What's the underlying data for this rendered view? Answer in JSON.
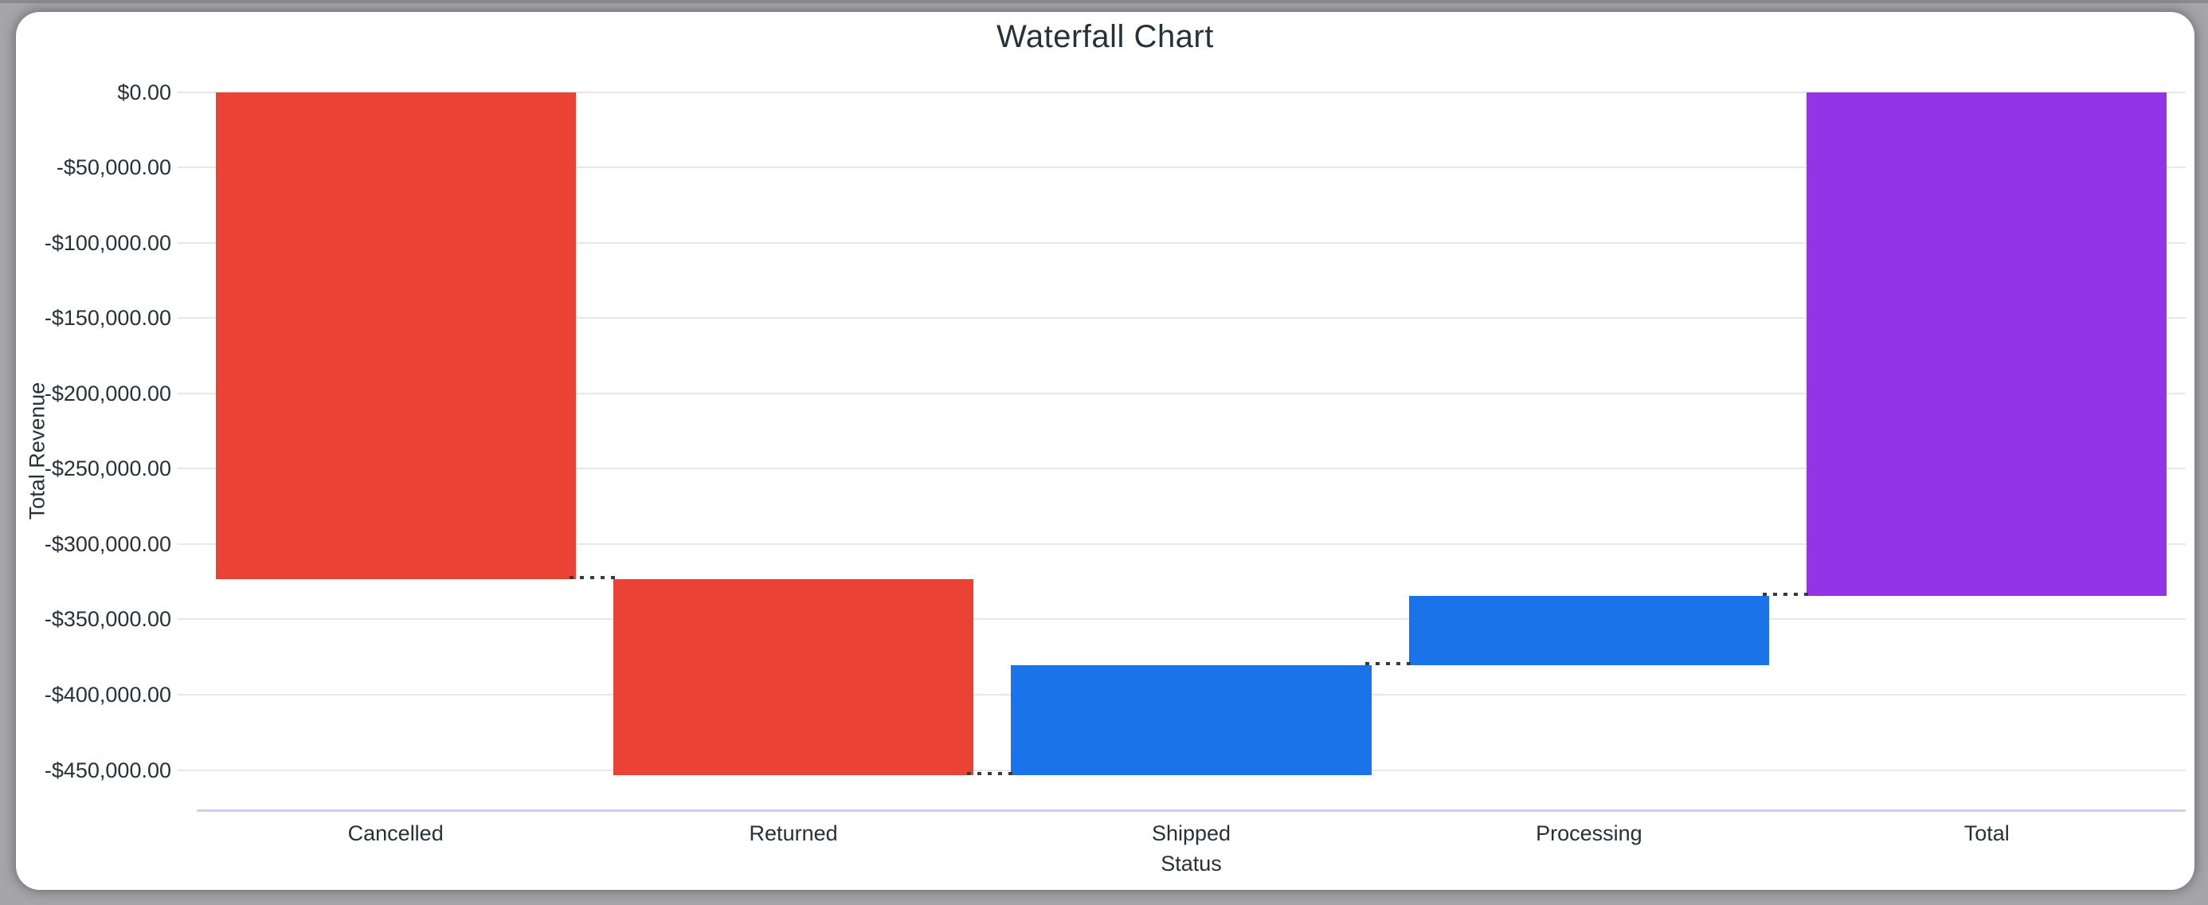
{
  "window": {
    "frame_color": "#a6a6aa",
    "card_color": "#ffffff",
    "text_color": "#263238"
  },
  "chart_data": {
    "type": "bar",
    "subtype": "waterfall",
    "title": "Waterfall Chart",
    "xlabel": "Status",
    "ylabel": "Total Revenue",
    "categories": [
      "Cancelled",
      "Returned",
      "Shipped",
      "Processing",
      "Total"
    ],
    "values": [
      -323500,
      -130000,
      73000,
      46300,
      -334200
    ],
    "bar_roles": [
      "decrease",
      "decrease",
      "increase",
      "increase",
      "total"
    ],
    "cumulative": [
      -323500,
      -453500,
      -380500,
      -334200,
      -334200
    ],
    "series_colors": {
      "decrease": "#ea4335",
      "increase": "#1a73e8",
      "total": "#9334e6"
    },
    "y_ticks": [
      0,
      -50000,
      -100000,
      -150000,
      -200000,
      -250000,
      -300000,
      -350000,
      -400000,
      -450000
    ],
    "y_tick_labels": [
      "$0.00",
      "-$50,000.00",
      "-$100,000.00",
      "-$150,000.00",
      "-$200,000.00",
      "-$250,000.00",
      "-$300,000.00",
      "-$350,000.00",
      "-$400,000.00",
      "-$450,000.00"
    ],
    "ylim": [
      -476000,
      0
    ],
    "grid": true,
    "legend_position": "none",
    "connector_style": "dotted",
    "grid_color": "#e7e7e9",
    "axis_line_color": "#c9d2ec",
    "connector_color": "#3a3a3a"
  }
}
